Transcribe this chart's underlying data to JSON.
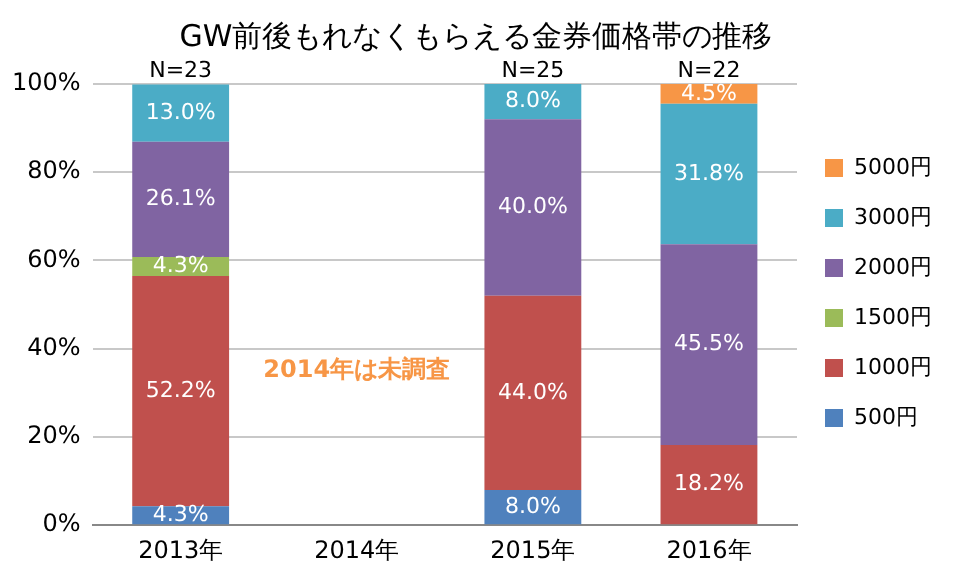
{
  "chart_data": {
    "type": "bar",
    "stacked": true,
    "title": "GW前後もれなくもらえる金券価格帯の推移",
    "categories": [
      "2013年",
      "2014年",
      "2015年",
      "2016年"
    ],
    "series": [
      {
        "name": "500円",
        "color": "#4f81bd",
        "values": [
          4.3,
          null,
          8.0,
          0
        ],
        "value_labels": [
          "4.3%",
          null,
          "8.0%",
          null
        ]
      },
      {
        "name": "1000円",
        "color": "#c0504d",
        "values": [
          52.2,
          null,
          44.0,
          18.2
        ],
        "value_labels": [
          "52.2%",
          null,
          "44.0%",
          "18.2%"
        ]
      },
      {
        "name": "1500円",
        "color": "#9bbb59",
        "values": [
          4.3,
          null,
          0,
          0
        ],
        "value_labels": [
          "4.3%",
          null,
          null,
          null
        ]
      },
      {
        "name": "2000円",
        "color": "#8064a2",
        "values": [
          26.1,
          null,
          40.0,
          45.5
        ],
        "value_labels": [
          "26.1%",
          null,
          "40.0%",
          "45.5%"
        ]
      },
      {
        "name": "3000円",
        "color": "#4bacc6",
        "values": [
          13.0,
          null,
          8.0,
          31.8
        ],
        "value_labels": [
          "13.0%",
          null,
          "8.0%",
          "31.8%"
        ]
      },
      {
        "name": "5000円",
        "color": "#f79646",
        "values": [
          0,
          null,
          0,
          4.5
        ],
        "value_labels": [
          null,
          null,
          null,
          "4.5%"
        ]
      }
    ],
    "ylim": [
      0,
      100
    ],
    "yticks": [
      {
        "value": 0,
        "label": "0%"
      },
      {
        "value": 20,
        "label": "20%"
      },
      {
        "value": 40,
        "label": "40%"
      },
      {
        "value": 60,
        "label": "60%"
      },
      {
        "value": 80,
        "label": "80%"
      },
      {
        "value": 100,
        "label": "100%"
      }
    ],
    "grid": "y",
    "legend": "right",
    "annotations": [
      {
        "text": "N=23",
        "x": "2013年",
        "y": 100
      },
      {
        "text": "N=25",
        "x": "2015年",
        "y": 100
      },
      {
        "text": "N=22",
        "x": "2016年",
        "y": 100
      },
      "2014年は未調査"
    ]
  }
}
